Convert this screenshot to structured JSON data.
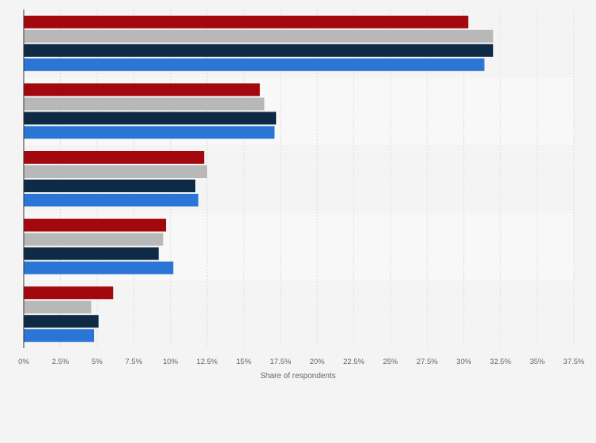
{
  "chart_data": {
    "type": "bar",
    "orientation": "horizontal",
    "categories": [
      "",
      "",
      "",
      "",
      ""
    ],
    "series": [
      {
        "color": "#a4080f",
        "values": [
          30.3,
          16.1,
          12.3,
          9.7,
          6.1
        ]
      },
      {
        "color": "#b8b8b8",
        "values": [
          32.0,
          16.4,
          12.5,
          9.5,
          4.6
        ]
      },
      {
        "color": "#0e2a44",
        "values": [
          32.0,
          17.2,
          11.7,
          9.2,
          5.1
        ]
      },
      {
        "color": "#2a75d5",
        "values": [
          31.4,
          17.1,
          11.9,
          10.2,
          4.8
        ]
      }
    ],
    "xlabel": "Share of respondents",
    "ylabel": "",
    "xlim": [
      0,
      37.5
    ],
    "x_ticks": [
      "0%",
      "2.5%",
      "5%",
      "7.5%",
      "10%",
      "12.5%",
      "15%",
      "17.5%",
      "20%",
      "22.5%",
      "25%",
      "27.5%",
      "30%",
      "32.5%",
      "35%",
      "37.5%"
    ],
    "grid": true,
    "legend": "none"
  }
}
